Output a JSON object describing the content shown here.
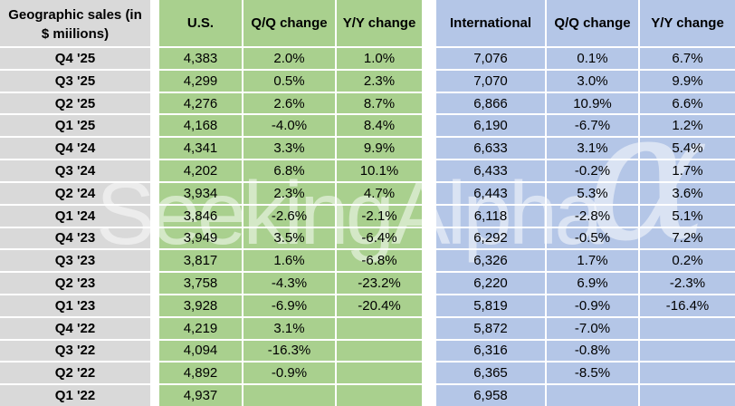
{
  "title_lines": [
    "Geographic sales (in",
    "$ miilions)"
  ],
  "chart_data": {
    "type": "table",
    "title": "Geographic sales (in $ miilions)",
    "columns": [
      "U.S.",
      "Q/Q change",
      "Y/Y change",
      "International",
      "Q/Q change",
      "Y/Y change"
    ],
    "row_header_label": "quarter",
    "rows": [
      [
        "Q4 '25",
        "4,383",
        "2.0%",
        "1.0%",
        "7,076",
        "0.1%",
        "6.7%"
      ],
      [
        "Q3 '25",
        "4,299",
        "0.5%",
        "2.3%",
        "7,070",
        "3.0%",
        "9.9%"
      ],
      [
        "Q2 '25",
        "4,276",
        "2.6%",
        "8.7%",
        "6,866",
        "10.9%",
        "6.6%"
      ],
      [
        "Q1 '25",
        "4,168",
        "-4.0%",
        "8.4%",
        "6,190",
        "-6.7%",
        "1.2%"
      ],
      [
        "Q4 '24",
        "4,341",
        "3.3%",
        "9.9%",
        "6,633",
        "3.1%",
        "5.4%"
      ],
      [
        "Q3 '24",
        "4,202",
        "6.8%",
        "10.1%",
        "6,433",
        "-0.2%",
        "1.7%"
      ],
      [
        "Q2 '24",
        "3,934",
        "2.3%",
        "4.7%",
        "6,443",
        "5.3%",
        "3.6%"
      ],
      [
        "Q1 '24",
        "3,846",
        "-2.6%",
        "-2.1%",
        "6,118",
        "-2.8%",
        "5.1%"
      ],
      [
        "Q4 '23",
        "3,949",
        "3.5%",
        "-6.4%",
        "6,292",
        "-0.5%",
        "7.2%"
      ],
      [
        "Q3 '23",
        "3,817",
        "1.6%",
        "-6.8%",
        "6,326",
        "1.7%",
        "0.2%"
      ],
      [
        "Q2 '23",
        "3,758",
        "-4.3%",
        "-23.2%",
        "6,220",
        "6.9%",
        "-2.3%"
      ],
      [
        "Q1 '23",
        "3,928",
        "-6.9%",
        "-20.4%",
        "5,819",
        "-0.9%",
        "-16.4%"
      ],
      [
        "Q4 '22",
        "4,219",
        "3.1%",
        "",
        "5,872",
        "-7.0%",
        ""
      ],
      [
        "Q3 '22",
        "4,094",
        "-16.3%",
        "",
        "6,316",
        "-0.8%",
        ""
      ],
      [
        "Q2 '22",
        "4,892",
        "-0.9%",
        "",
        "6,365",
        "-8.5%",
        ""
      ],
      [
        "Q1 '22",
        "4,937",
        "",
        "",
        "6,958",
        "",
        ""
      ]
    ]
  },
  "watermark": {
    "text": "SeekingAlpha",
    "symbol": "α"
  },
  "colors": {
    "label_bg": "#d9d9d9",
    "us_bg": "#a9d08e",
    "intl_bg": "#b4c6e7",
    "grid": "#ffffff",
    "text": "#000000",
    "watermark": "rgba(255,255,255,0.5)"
  }
}
